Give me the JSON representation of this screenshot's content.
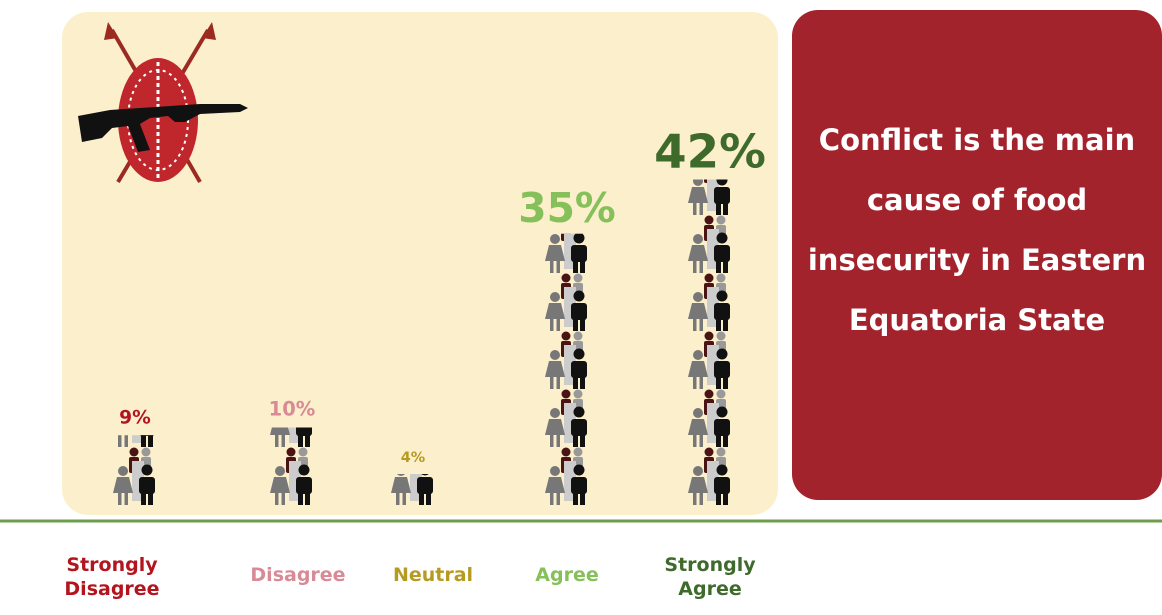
{
  "chart_data": {
    "type": "pictogram",
    "title": "Conflict is the main cause of food insecurity in Eastern Equatoria State",
    "categories": [
      "Strongly Disagree",
      "Disagree",
      "Neutral",
      "Agree",
      "Strongly Agree"
    ],
    "values": [
      9,
      10,
      4,
      35,
      42
    ],
    "value_labels": [
      "9%",
      "10%",
      "4%",
      "35%",
      "42%"
    ],
    "colors": [
      "#b3151f",
      "#d88a96",
      "#b59b22",
      "#86c05a",
      "#3e6b2c"
    ]
  }
}
